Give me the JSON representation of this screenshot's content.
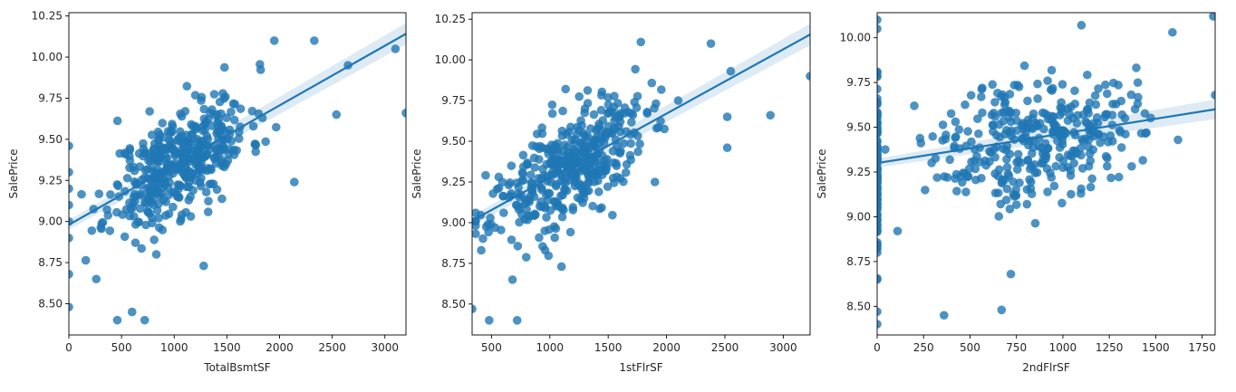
{
  "chart_data": [
    {
      "type": "scatter",
      "xlabel": "TotalBsmtSF",
      "ylabel": "SalePrice",
      "xlim": [
        0,
        3200
      ],
      "ylim": [
        8.31,
        10.27
      ],
      "xticks": [
        0,
        500,
        1000,
        1500,
        2000,
        2500,
        3000
      ],
      "yticks": [
        8.5,
        8.75,
        9.0,
        9.25,
        9.5,
        9.75,
        10.0,
        10.25
      ],
      "xtick_labels": [
        "0",
        "500",
        "1000",
        "1500",
        "2000",
        "2500",
        "3000"
      ],
      "ytick_labels": [
        "8.50",
        "8.75",
        "9.00",
        "9.25",
        "9.50",
        "9.75",
        "10.00",
        "10.25"
      ],
      "regression": {
        "slope": 0.000363,
        "intercept": 8.98,
        "ci": 0.03
      },
      "color": "#1f77b4",
      "outliers": [
        [
          0,
          8.48
        ],
        [
          0,
          8.68
        ],
        [
          0,
          8.9
        ],
        [
          0,
          9.0
        ],
        [
          0,
          9.1
        ],
        [
          0,
          9.2
        ],
        [
          0,
          9.3
        ],
        [
          0,
          9.46
        ],
        [
          460,
          8.4
        ],
        [
          600,
          8.45
        ],
        [
          720,
          8.4
        ],
        [
          260,
          8.65
        ],
        [
          3100,
          10.05
        ],
        [
          3200,
          9.66
        ],
        [
          2650,
          9.95
        ],
        [
          2330,
          10.1
        ],
        [
          1950,
          10.1
        ],
        [
          2540,
          9.65
        ],
        [
          2140,
          9.24
        ],
        [
          1280,
          8.73
        ]
      ],
      "cluster": {
        "center_x": 1050,
        "spread_x": 330,
        "noise": 0.16,
        "count": 420,
        "seed": 11
      }
    },
    {
      "type": "scatter",
      "xlabel": "1stFlrSF",
      "ylabel": "SalePrice",
      "xlim": [
        334,
        3230
      ],
      "ylim": [
        8.31,
        10.29
      ],
      "xticks": [
        500,
        1000,
        1500,
        2000,
        2500,
        3000
      ],
      "yticks": [
        8.5,
        8.75,
        9.0,
        9.25,
        9.5,
        9.75,
        10.0,
        10.25
      ],
      "xtick_labels": [
        "500",
        "1000",
        "1500",
        "2000",
        "2500",
        "3000"
      ],
      "ytick_labels": [
        "8.50",
        "8.75",
        "9.00",
        "9.25",
        "9.50",
        "9.75",
        "10.00",
        "10.25"
      ],
      "regression": {
        "slope": 0.000395,
        "intercept": 8.88,
        "ci": 0.03
      },
      "color": "#1f77b4",
      "outliers": [
        [
          334,
          8.47
        ],
        [
          480,
          8.4
        ],
        [
          720,
          8.4
        ],
        [
          680,
          8.65
        ],
        [
          1100,
          8.73
        ],
        [
          2890,
          9.66
        ],
        [
          3230,
          9.9
        ],
        [
          2380,
          10.1
        ],
        [
          2550,
          9.93
        ],
        [
          1780,
          10.11
        ],
        [
          2520,
          9.65
        ],
        [
          2520,
          9.46
        ],
        [
          2100,
          9.75
        ],
        [
          1900,
          9.25
        ]
      ],
      "cluster": {
        "center_x": 1150,
        "spread_x": 330,
        "noise": 0.16,
        "count": 420,
        "seed": 23
      }
    },
    {
      "type": "scatter",
      "xlabel": "2ndFlrSF",
      "ylabel": "SalePrice",
      "xlim": [
        0,
        1820
      ],
      "ylim": [
        8.34,
        10.14
      ],
      "xticks": [
        0,
        250,
        500,
        750,
        1000,
        1250,
        1500,
        1750
      ],
      "yticks": [
        8.5,
        8.75,
        9.0,
        9.25,
        9.5,
        9.75,
        10.0
      ],
      "xtick_labels": [
        "0",
        "250",
        "500",
        "750",
        "1000",
        "1250",
        "1500",
        "1750"
      ],
      "ytick_labels": [
        "8.50",
        "8.75",
        "9.00",
        "9.25",
        "9.50",
        "9.75",
        "10.00"
      ],
      "regression": {
        "slope": 0.000165,
        "intercept": 9.3,
        "ci": 0.025
      },
      "color": "#1f77b4",
      "outliers": [
        [
          0,
          8.4
        ],
        [
          0,
          8.47
        ],
        [
          0,
          8.65
        ],
        [
          0,
          8.8
        ],
        [
          0,
          10.1
        ],
        [
          0,
          10.05
        ],
        [
          360,
          8.45
        ],
        [
          670,
          8.48
        ],
        [
          720,
          8.68
        ],
        [
          1810,
          10.12
        ],
        [
          1820,
          9.68
        ],
        [
          1100,
          10.07
        ],
        [
          1590,
          10.03
        ],
        [
          1620,
          9.43
        ],
        [
          1450,
          9.47
        ],
        [
          200,
          9.62
        ],
        [
          110,
          8.92
        ]
      ],
      "cluster": {
        "center_x": 850,
        "spread_x": 260,
        "noise": 0.17,
        "count": 340,
        "seed": 37,
        "left_strip": true
      }
    }
  ]
}
